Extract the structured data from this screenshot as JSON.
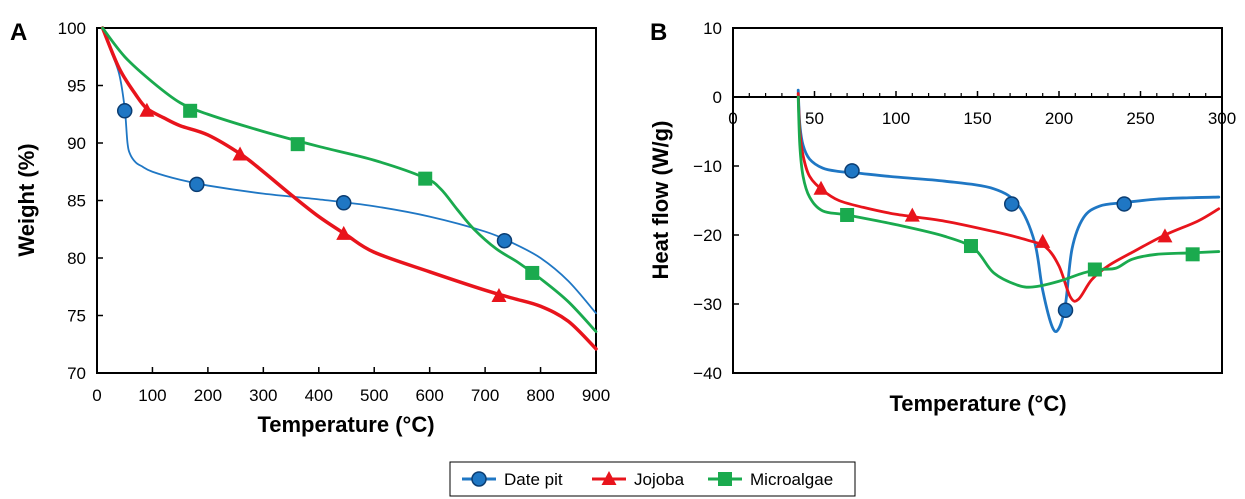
{
  "figure": {
    "colors": {
      "Date pit": "#1f77c4",
      "Jojoba": "#e8141c",
      "Microalgae": "#1aaa4e"
    },
    "legend": [
      "Date pit",
      "Jojoba",
      "Microalgae"
    ]
  },
  "chart_data": [
    {
      "panel": "A",
      "type": "line",
      "xlabel": "Temperature (°C)",
      "ylabel": "Weight (%)",
      "xlim": [
        0,
        900
      ],
      "ylim": [
        70,
        100
      ],
      "xticks": [
        0,
        100,
        200,
        300,
        400,
        500,
        600,
        700,
        800,
        900
      ],
      "yticks": [
        70,
        75,
        80,
        85,
        90,
        95,
        100
      ],
      "grid": false,
      "legend_placement": "bottom-center",
      "series": [
        {
          "name": "Date pit",
          "marker": "circle",
          "x": [
            10,
            25,
            40,
            50,
            55,
            60,
            70,
            80,
            100,
            150,
            200,
            300,
            400,
            500,
            600,
            700,
            750,
            800,
            850,
            900
          ],
          "y": [
            100,
            98,
            96,
            93,
            90,
            89,
            88.3,
            88,
            87.5,
            86.8,
            86.3,
            85.6,
            85.1,
            84.5,
            83.6,
            82.3,
            81.3,
            80,
            78,
            75.2
          ],
          "markers_x": [
            50,
            180,
            445,
            735
          ],
          "markers_y": [
            92.8,
            86.4,
            84.8,
            81.5
          ]
        },
        {
          "name": "Jojoba",
          "marker": "triangle",
          "x": [
            10,
            40,
            70,
            90,
            120,
            150,
            200,
            260,
            300,
            350,
            400,
            450,
            500,
            600,
            700,
            750,
            800,
            850,
            900
          ],
          "y": [
            100,
            96.5,
            94.2,
            93,
            92.2,
            91.5,
            90.7,
            89,
            87.5,
            85.5,
            83.6,
            82,
            80.5,
            78.8,
            77.2,
            76.5,
            75.8,
            74.5,
            72.1
          ],
          "markers_x": [
            90,
            258,
            445,
            725
          ],
          "markers_y": [
            92.8,
            89,
            82.1,
            76.7
          ]
        },
        {
          "name": "Microalgae",
          "marker": "square",
          "x": [
            10,
            50,
            100,
            150,
            200,
            300,
            400,
            500,
            590,
            620,
            650,
            680,
            720,
            760,
            800,
            850,
            900
          ],
          "y": [
            100,
            97.5,
            95.3,
            93.5,
            92.5,
            91,
            89.7,
            88.5,
            87,
            86,
            84.2,
            82.5,
            80.8,
            79.6,
            78.2,
            76.2,
            73.6
          ],
          "markers_x": [
            168,
            362,
            592,
            785
          ],
          "markers_y": [
            92.8,
            89.9,
            86.9,
            78.7
          ]
        }
      ]
    },
    {
      "panel": "B",
      "type": "line",
      "xlabel": "Temperature (°C)",
      "ylabel": "Heat flow (W/g)",
      "xlim": [
        0,
        300
      ],
      "ylim": [
        -40,
        10
      ],
      "xticks": [
        0,
        50,
        100,
        150,
        200,
        250,
        300
      ],
      "yticks": [
        10,
        0,
        -10,
        -20,
        -30,
        -40
      ],
      "grid": false,
      "series": [
        {
          "name": "Date pit",
          "marker": "circle",
          "x": [
            40,
            41,
            43,
            47,
            55,
            65,
            75,
            100,
            130,
            160,
            175,
            185,
            190,
            196,
            200,
            204,
            208,
            215,
            225,
            240,
            260,
            280,
            298
          ],
          "y": [
            1,
            -4,
            -7,
            -9,
            -10.3,
            -10.8,
            -11,
            -11.6,
            -12.2,
            -13.3,
            -15.7,
            -21,
            -28,
            -33.4,
            -33.5,
            -30,
            -22,
            -17.5,
            -15.8,
            -15.3,
            -14.8,
            -14.6,
            -14.5
          ],
          "markers_x": [
            73,
            171,
            204,
            240
          ],
          "markers_y": [
            -10.7,
            -15.5,
            -30.9,
            -15.5
          ]
        },
        {
          "name": "Jojoba",
          "marker": "triangle",
          "x": [
            40,
            41,
            43,
            47,
            55,
            65,
            80,
            100,
            130,
            160,
            180,
            192,
            200,
            207,
            212,
            220,
            230,
            245,
            265,
            285,
            298
          ],
          "y": [
            0.5,
            -5,
            -8.5,
            -11.5,
            -13.5,
            -15,
            -16,
            -17,
            -18,
            -19.5,
            -20.7,
            -21.8,
            -24.5,
            -29,
            -29.3,
            -26.5,
            -24.5,
            -22.5,
            -20,
            -18,
            -16.2
          ],
          "markers_x": [
            54,
            110,
            190,
            265
          ],
          "markers_y": [
            -13.3,
            -17.2,
            -21,
            -20.2
          ]
        },
        {
          "name": "Microalgae",
          "marker": "square",
          "x": [
            40,
            41,
            43,
            47,
            55,
            70,
            100,
            130,
            148,
            160,
            175,
            185,
            200,
            215,
            225,
            235,
            245,
            260,
            280,
            298
          ],
          "y": [
            0,
            -7,
            -11.5,
            -14.5,
            -16.5,
            -17.1,
            -18.5,
            -20.2,
            -22,
            -25.5,
            -27.3,
            -27.5,
            -26.7,
            -25.5,
            -25,
            -24.8,
            -23.5,
            -22.8,
            -22.6,
            -22.4
          ],
          "markers_x": [
            70,
            146,
            222,
            282
          ],
          "markers_y": [
            -17.1,
            -21.6,
            -25,
            -22.8
          ]
        }
      ]
    }
  ]
}
